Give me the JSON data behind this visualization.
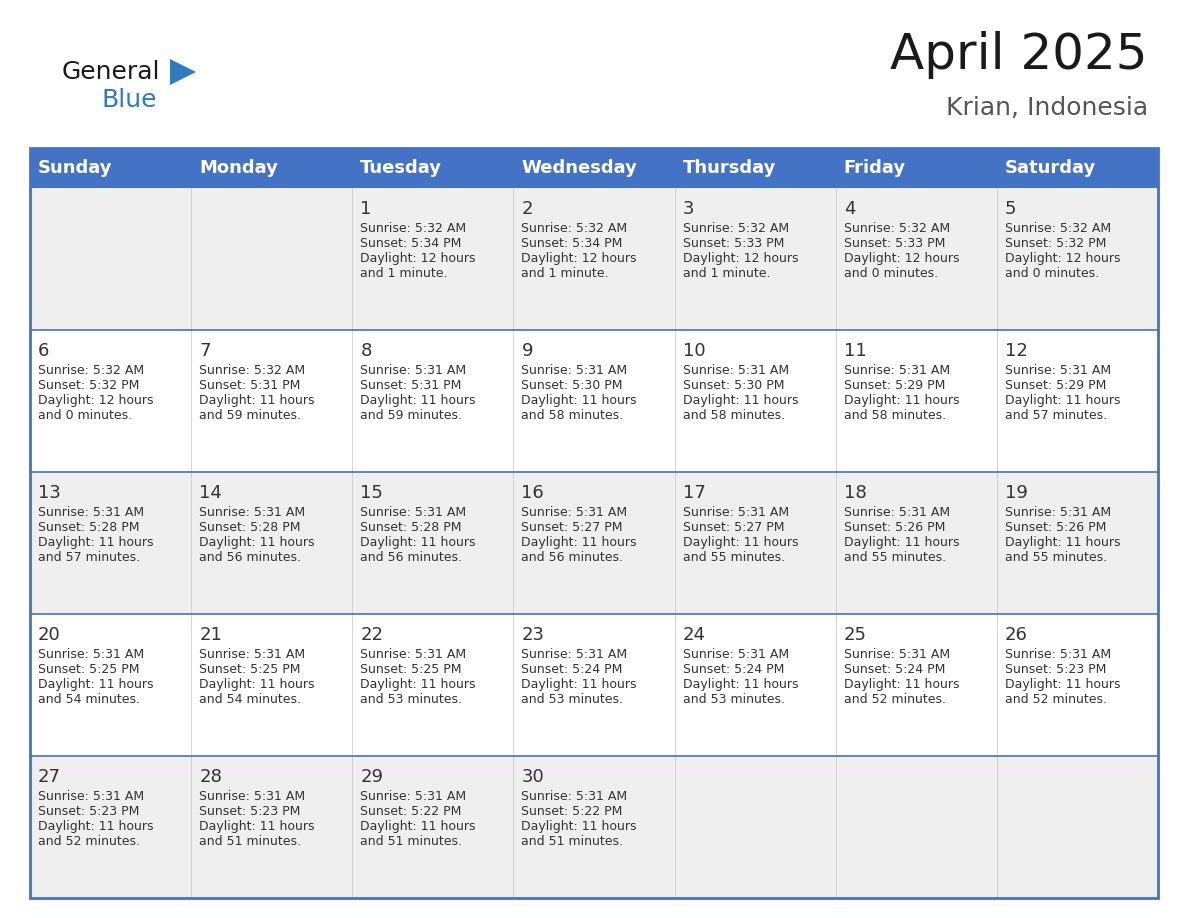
{
  "title": "April 2025",
  "subtitle": "Krian, Indonesia",
  "header_color": "#4472C4",
  "header_text_color": "#FFFFFF",
  "row_colors": [
    "#EFEFEF",
    "#FFFFFF"
  ],
  "border_color": "#4472C4",
  "text_color": "#333333",
  "days_of_week": [
    "Sunday",
    "Monday",
    "Tuesday",
    "Wednesday",
    "Thursday",
    "Friday",
    "Saturday"
  ],
  "logo_general_color": "#1a1a1a",
  "logo_blue_color": "#2E7BBF",
  "title_fontsize": 36,
  "subtitle_fontsize": 18,
  "header_fontsize": 13,
  "day_num_fontsize": 13,
  "cell_text_fontsize": 9,
  "weeks": [
    [
      {
        "day": "",
        "sunrise": "",
        "sunset": "",
        "daylight": ""
      },
      {
        "day": "",
        "sunrise": "",
        "sunset": "",
        "daylight": ""
      },
      {
        "day": "1",
        "sunrise": "5:32 AM",
        "sunset": "5:34 PM",
        "daylight": "12 hours\nand 1 minute."
      },
      {
        "day": "2",
        "sunrise": "5:32 AM",
        "sunset": "5:34 PM",
        "daylight": "12 hours\nand 1 minute."
      },
      {
        "day": "3",
        "sunrise": "5:32 AM",
        "sunset": "5:33 PM",
        "daylight": "12 hours\nand 1 minute."
      },
      {
        "day": "4",
        "sunrise": "5:32 AM",
        "sunset": "5:33 PM",
        "daylight": "12 hours\nand 0 minutes."
      },
      {
        "day": "5",
        "sunrise": "5:32 AM",
        "sunset": "5:32 PM",
        "daylight": "12 hours\nand 0 minutes."
      }
    ],
    [
      {
        "day": "6",
        "sunrise": "5:32 AM",
        "sunset": "5:32 PM",
        "daylight": "12 hours\nand 0 minutes."
      },
      {
        "day": "7",
        "sunrise": "5:32 AM",
        "sunset": "5:31 PM",
        "daylight": "11 hours\nand 59 minutes."
      },
      {
        "day": "8",
        "sunrise": "5:31 AM",
        "sunset": "5:31 PM",
        "daylight": "11 hours\nand 59 minutes."
      },
      {
        "day": "9",
        "sunrise": "5:31 AM",
        "sunset": "5:30 PM",
        "daylight": "11 hours\nand 58 minutes."
      },
      {
        "day": "10",
        "sunrise": "5:31 AM",
        "sunset": "5:30 PM",
        "daylight": "11 hours\nand 58 minutes."
      },
      {
        "day": "11",
        "sunrise": "5:31 AM",
        "sunset": "5:29 PM",
        "daylight": "11 hours\nand 58 minutes."
      },
      {
        "day": "12",
        "sunrise": "5:31 AM",
        "sunset": "5:29 PM",
        "daylight": "11 hours\nand 57 minutes."
      }
    ],
    [
      {
        "day": "13",
        "sunrise": "5:31 AM",
        "sunset": "5:28 PM",
        "daylight": "11 hours\nand 57 minutes."
      },
      {
        "day": "14",
        "sunrise": "5:31 AM",
        "sunset": "5:28 PM",
        "daylight": "11 hours\nand 56 minutes."
      },
      {
        "day": "15",
        "sunrise": "5:31 AM",
        "sunset": "5:28 PM",
        "daylight": "11 hours\nand 56 minutes."
      },
      {
        "day": "16",
        "sunrise": "5:31 AM",
        "sunset": "5:27 PM",
        "daylight": "11 hours\nand 56 minutes."
      },
      {
        "day": "17",
        "sunrise": "5:31 AM",
        "sunset": "5:27 PM",
        "daylight": "11 hours\nand 55 minutes."
      },
      {
        "day": "18",
        "sunrise": "5:31 AM",
        "sunset": "5:26 PM",
        "daylight": "11 hours\nand 55 minutes."
      },
      {
        "day": "19",
        "sunrise": "5:31 AM",
        "sunset": "5:26 PM",
        "daylight": "11 hours\nand 55 minutes."
      }
    ],
    [
      {
        "day": "20",
        "sunrise": "5:31 AM",
        "sunset": "5:25 PM",
        "daylight": "11 hours\nand 54 minutes."
      },
      {
        "day": "21",
        "sunrise": "5:31 AM",
        "sunset": "5:25 PM",
        "daylight": "11 hours\nand 54 minutes."
      },
      {
        "day": "22",
        "sunrise": "5:31 AM",
        "sunset": "5:25 PM",
        "daylight": "11 hours\nand 53 minutes."
      },
      {
        "day": "23",
        "sunrise": "5:31 AM",
        "sunset": "5:24 PM",
        "daylight": "11 hours\nand 53 minutes."
      },
      {
        "day": "24",
        "sunrise": "5:31 AM",
        "sunset": "5:24 PM",
        "daylight": "11 hours\nand 53 minutes."
      },
      {
        "day": "25",
        "sunrise": "5:31 AM",
        "sunset": "5:24 PM",
        "daylight": "11 hours\nand 52 minutes."
      },
      {
        "day": "26",
        "sunrise": "5:31 AM",
        "sunset": "5:23 PM",
        "daylight": "11 hours\nand 52 minutes."
      }
    ],
    [
      {
        "day": "27",
        "sunrise": "5:31 AM",
        "sunset": "5:23 PM",
        "daylight": "11 hours\nand 52 minutes."
      },
      {
        "day": "28",
        "sunrise": "5:31 AM",
        "sunset": "5:23 PM",
        "daylight": "11 hours\nand 51 minutes."
      },
      {
        "day": "29",
        "sunrise": "5:31 AM",
        "sunset": "5:22 PM",
        "daylight": "11 hours\nand 51 minutes."
      },
      {
        "day": "30",
        "sunrise": "5:31 AM",
        "sunset": "5:22 PM",
        "daylight": "11 hours\nand 51 minutes."
      },
      {
        "day": "",
        "sunrise": "",
        "sunset": "",
        "daylight": ""
      },
      {
        "day": "",
        "sunrise": "",
        "sunset": "",
        "daylight": ""
      },
      {
        "day": "",
        "sunrise": "",
        "sunset": "",
        "daylight": ""
      }
    ]
  ]
}
